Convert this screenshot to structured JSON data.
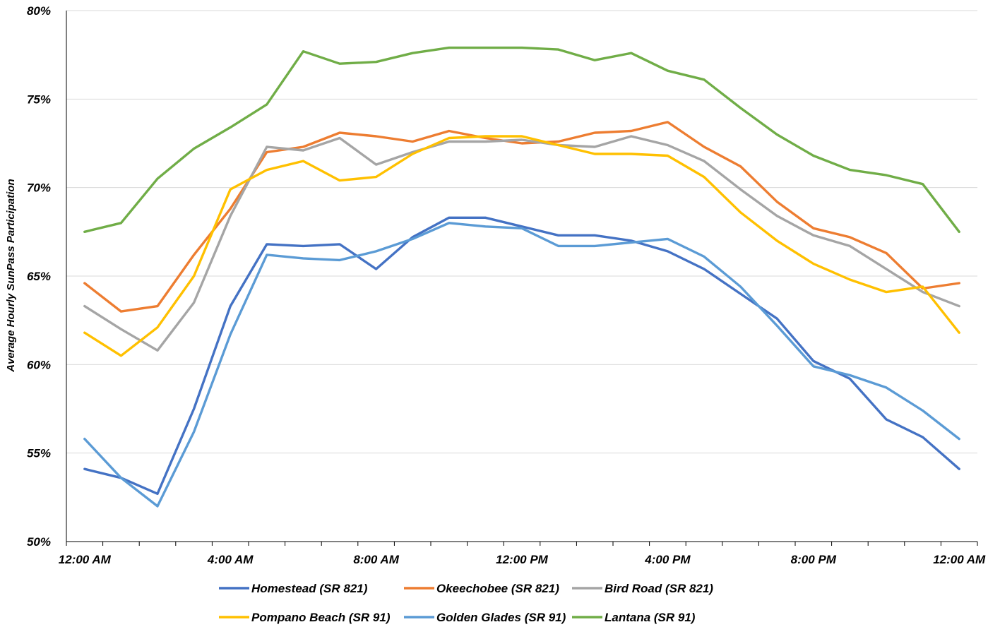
{
  "chart_data": {
    "type": "line",
    "title": "",
    "xlabel": "",
    "ylabel": "Average Hourly SunPass Participation",
    "ylim": [
      50,
      80
    ],
    "yticks": [
      "50%",
      "55%",
      "60%",
      "65%",
      "70%",
      "75%",
      "80%"
    ],
    "x_tick_labels": [
      "12:00 AM",
      "4:00 AM",
      "8:00 AM",
      "12:00 PM",
      "4:00 PM",
      "8:00 PM",
      "12:00 AM"
    ],
    "grid": true,
    "legend_position": "bottom",
    "x_hours": [
      0.5,
      1.5,
      2.5,
      3.5,
      4.5,
      5.5,
      6.5,
      7.5,
      8.5,
      9.5,
      10.5,
      11.5,
      12.5,
      13.5,
      14.5,
      15.5,
      16.5,
      17.5,
      18.5,
      19.5,
      20.5,
      21.5,
      22.5,
      23.5,
      24.5
    ],
    "series": [
      {
        "name": "Homestead (SR 821)",
        "color": "#4472C4",
        "values": [
          54.1,
          53.6,
          52.7,
          57.5,
          63.3,
          66.8,
          66.7,
          66.8,
          65.4,
          67.2,
          68.3,
          68.3,
          67.8,
          67.3,
          67.3,
          67.0,
          66.4,
          65.4,
          64.0,
          62.6,
          60.2,
          59.2,
          56.9,
          55.9,
          54.1
        ]
      },
      {
        "name": "Okeechobee (SR 821)",
        "color": "#ED7D31",
        "values": [
          64.6,
          63.0,
          63.3,
          66.2,
          68.8,
          72.0,
          72.3,
          73.1,
          72.9,
          72.6,
          73.2,
          72.8,
          72.5,
          72.6,
          73.1,
          73.2,
          73.7,
          72.3,
          71.2,
          69.2,
          67.7,
          67.2,
          66.3,
          64.3,
          64.6
        ]
      },
      {
        "name": "Bird Road (SR 821)",
        "color": "#A5A5A5",
        "values": [
          63.3,
          62.0,
          60.8,
          63.5,
          68.4,
          72.3,
          72.1,
          72.8,
          71.3,
          72.0,
          72.6,
          72.6,
          72.7,
          72.4,
          72.3,
          72.9,
          72.4,
          71.5,
          69.9,
          68.4,
          67.3,
          66.7,
          65.4,
          64.1,
          63.3
        ]
      },
      {
        "name": "Pompano Beach (SR 91)",
        "color": "#FFC000",
        "values": [
          61.8,
          60.5,
          62.1,
          65.0,
          69.9,
          71.0,
          71.5,
          70.4,
          70.6,
          71.9,
          72.8,
          72.9,
          72.9,
          72.4,
          71.9,
          71.9,
          71.8,
          70.6,
          68.6,
          67.0,
          65.7,
          64.8,
          64.1,
          64.4,
          61.8
        ]
      },
      {
        "name": "Golden Glades (SR 91)",
        "color": "#5B9BD5",
        "values": [
          55.8,
          53.6,
          52.0,
          56.2,
          61.7,
          66.2,
          66.0,
          65.9,
          66.4,
          67.1,
          68.0,
          67.8,
          67.7,
          66.7,
          66.7,
          66.9,
          67.1,
          66.1,
          64.4,
          62.2,
          59.9,
          59.4,
          58.7,
          57.4,
          55.8
        ]
      },
      {
        "name": "Lantana (SR 91)",
        "color": "#70AD47",
        "values": [
          67.5,
          68.0,
          70.5,
          72.2,
          73.4,
          74.7,
          77.7,
          77.0,
          77.1,
          77.6,
          77.9,
          77.9,
          77.9,
          77.8,
          77.2,
          77.6,
          76.6,
          76.1,
          74.5,
          73.0,
          71.8,
          71.0,
          70.7,
          70.2,
          67.5
        ]
      }
    ]
  }
}
